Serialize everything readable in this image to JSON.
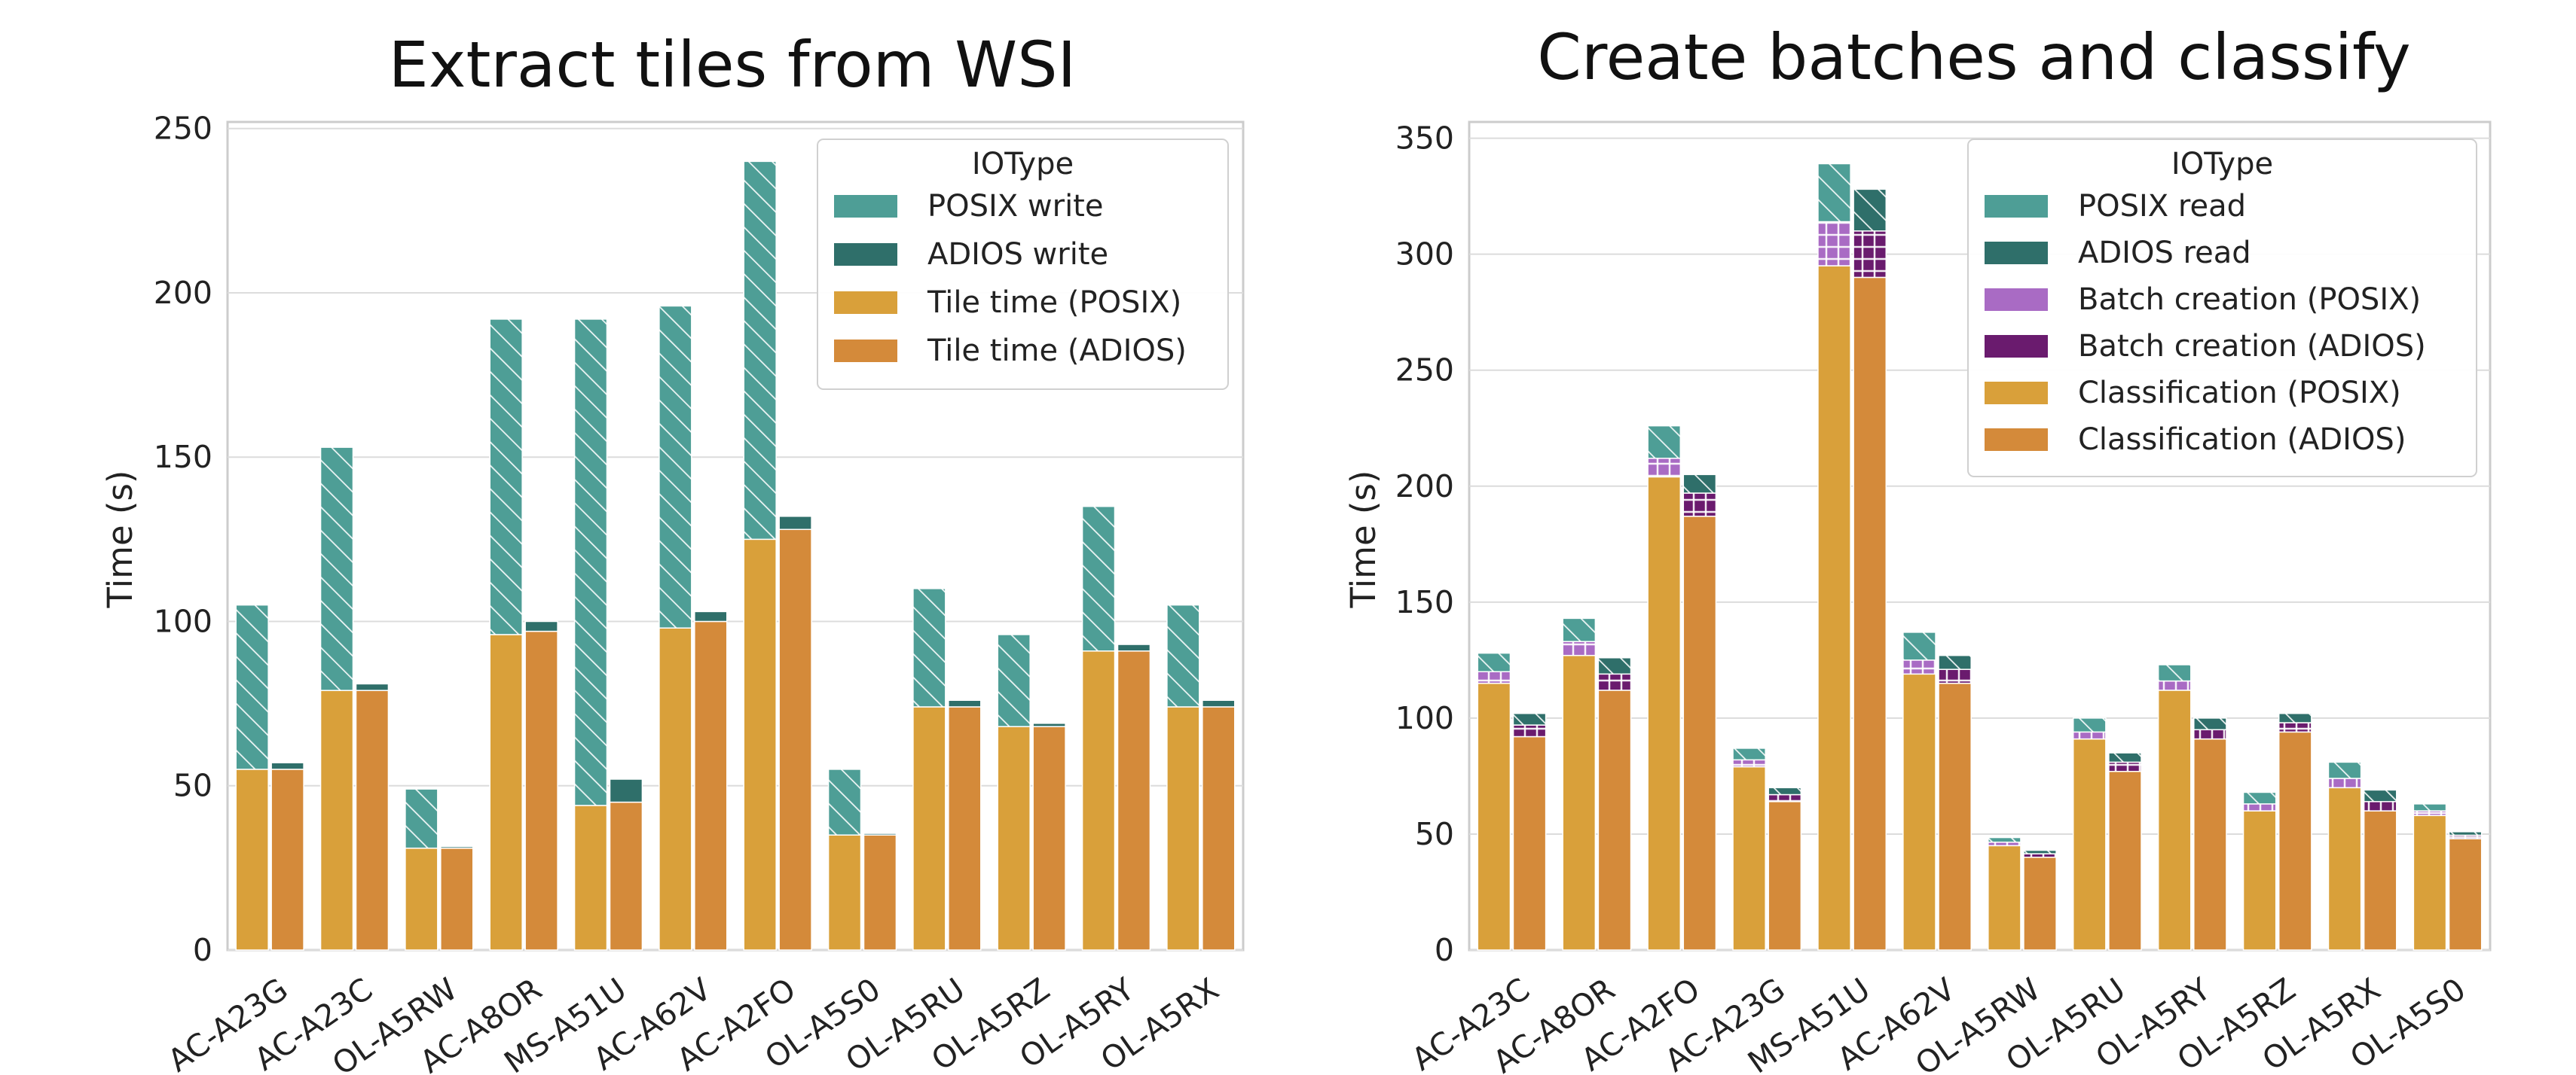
{
  "colors": {
    "posix_io": "#4e9e96",
    "adios_io": "#2f6f6a",
    "tile_posix": "#d9a03a",
    "tile_adios": "#d48a3a",
    "batch_posix": "#a96bc4",
    "batch_adios": "#6a1b6e",
    "grid": "#dcdcdc",
    "axes_edge": "#cccccc"
  },
  "chart_data": [
    {
      "type": "bar",
      "stacked": true,
      "title": "Extract tiles from WSI",
      "xlabel": "",
      "ylabel": "Time (s)",
      "ylim": [
        0,
        252
      ],
      "yticks": [
        0,
        50,
        100,
        150,
        200,
        250
      ],
      "grid": true,
      "legend_title": "IOType",
      "legend_placement": "top-right",
      "legend": [
        {
          "label": "POSIX write",
          "color_key": "posix_io",
          "hatch": true
        },
        {
          "label": "ADIOS write",
          "color_key": "adios_io",
          "hatch": false
        },
        {
          "label": "Tile time (POSIX)",
          "color_key": "tile_posix",
          "hatch": false
        },
        {
          "label": "Tile time (ADIOS)",
          "color_key": "tile_adios",
          "hatch": false
        }
      ],
      "categories": [
        "AC-A23G",
        "AC-A23C",
        "OL-A5RW",
        "AC-A8OR",
        "MS-A51U",
        "AC-A62V",
        "AC-A2FO",
        "OL-A5S0",
        "OL-A5RU",
        "OL-A5RZ",
        "OL-A5RY",
        "OL-A5RX"
      ],
      "groups": [
        {
          "variant": "POSIX",
          "segments": [
            {
              "name": "Tile time (POSIX)",
              "color_key": "tile_posix",
              "hatch": false,
              "values": [
                55,
                79,
                31,
                96,
                44,
                98,
                125,
                35,
                74,
                68,
                91,
                74
              ]
            },
            {
              "name": "POSIX write",
              "color_key": "posix_io",
              "hatch": true,
              "values": [
                50,
                74,
                18,
                96,
                148,
                98,
                115,
                20,
                36,
                28,
                44,
                31
              ]
            }
          ]
        },
        {
          "variant": "ADIOS",
          "segments": [
            {
              "name": "Tile time (ADIOS)",
              "color_key": "tile_adios",
              "hatch": false,
              "values": [
                55,
                79,
                31,
                97,
                45,
                100,
                128,
                35,
                74,
                68,
                91,
                74
              ]
            },
            {
              "name": "ADIOS write",
              "color_key": "adios_io",
              "hatch": false,
              "values": [
                2,
                2,
                0.5,
                3,
                7,
                3,
                4,
                0.5,
                2,
                1,
                2,
                2
              ]
            }
          ]
        }
      ]
    },
    {
      "type": "bar",
      "stacked": true,
      "title": "Create batches and classify",
      "xlabel": "",
      "ylabel": "Time (s)",
      "ylim": [
        0,
        357
      ],
      "yticks": [
        0,
        50,
        100,
        150,
        200,
        250,
        300,
        350
      ],
      "grid": true,
      "legend_title": "IOType",
      "legend_placement": "top-right",
      "legend": [
        {
          "label": "POSIX read",
          "color_key": "posix_io",
          "hatch": true
        },
        {
          "label": "ADIOS read",
          "color_key": "adios_io",
          "hatch": true
        },
        {
          "label": "Batch creation (POSIX)",
          "color_key": "batch_posix",
          "hatch": true
        },
        {
          "label": "Batch creation (ADIOS)",
          "color_key": "batch_adios",
          "hatch": true
        },
        {
          "label": "Classification (POSIX)",
          "color_key": "tile_posix",
          "hatch": false
        },
        {
          "label": "Classification (ADIOS)",
          "color_key": "tile_adios",
          "hatch": false
        }
      ],
      "categories": [
        "AC-A23C",
        "AC-A8OR",
        "AC-A2FO",
        "AC-A23G",
        "MS-A51U",
        "AC-A62V",
        "OL-A5RW",
        "OL-A5RU",
        "OL-A5RY",
        "OL-A5RZ",
        "OL-A5RX",
        "OL-A5S0"
      ],
      "groups": [
        {
          "variant": "POSIX",
          "segments": [
            {
              "name": "Classification (POSIX)",
              "color_key": "tile_posix",
              "hatch": false,
              "values": [
                115,
                127,
                204,
                79,
                295,
                119,
                45,
                91,
                112,
                60,
                70,
                58
              ]
            },
            {
              "name": "Batch creation (POSIX)",
              "color_key": "batch_posix",
              "hatch": true,
              "values": [
                5,
                6,
                8,
                3,
                19,
                6,
                1.5,
                3,
                4,
                3,
                4,
                2
              ]
            },
            {
              "name": "POSIX read",
              "color_key": "posix_io",
              "hatch": true,
              "values": [
                8,
                10,
                14,
                5,
                25,
                12,
                2,
                6,
                7,
                5,
                7,
                3
              ]
            }
          ]
        },
        {
          "variant": "ADIOS",
          "segments": [
            {
              "name": "Classification (ADIOS)",
              "color_key": "tile_adios",
              "hatch": false,
              "values": [
                92,
                112,
                187,
                64,
                290,
                115,
                40,
                77,
                91,
                94,
                60,
                48
              ]
            },
            {
              "name": "Batch creation (ADIOS)",
              "color_key": "batch_adios",
              "hatch": true,
              "values": [
                5,
                7,
                10,
                3,
                20,
                6,
                1.5,
                4,
                4,
                4,
                4,
                1.5
              ]
            },
            {
              "name": "ADIOS read",
              "color_key": "adios_io",
              "hatch": true,
              "values": [
                5,
                7,
                8,
                3,
                18,
                6,
                1.5,
                4,
                5,
                4,
                5,
                1.5
              ]
            }
          ]
        }
      ]
    }
  ]
}
